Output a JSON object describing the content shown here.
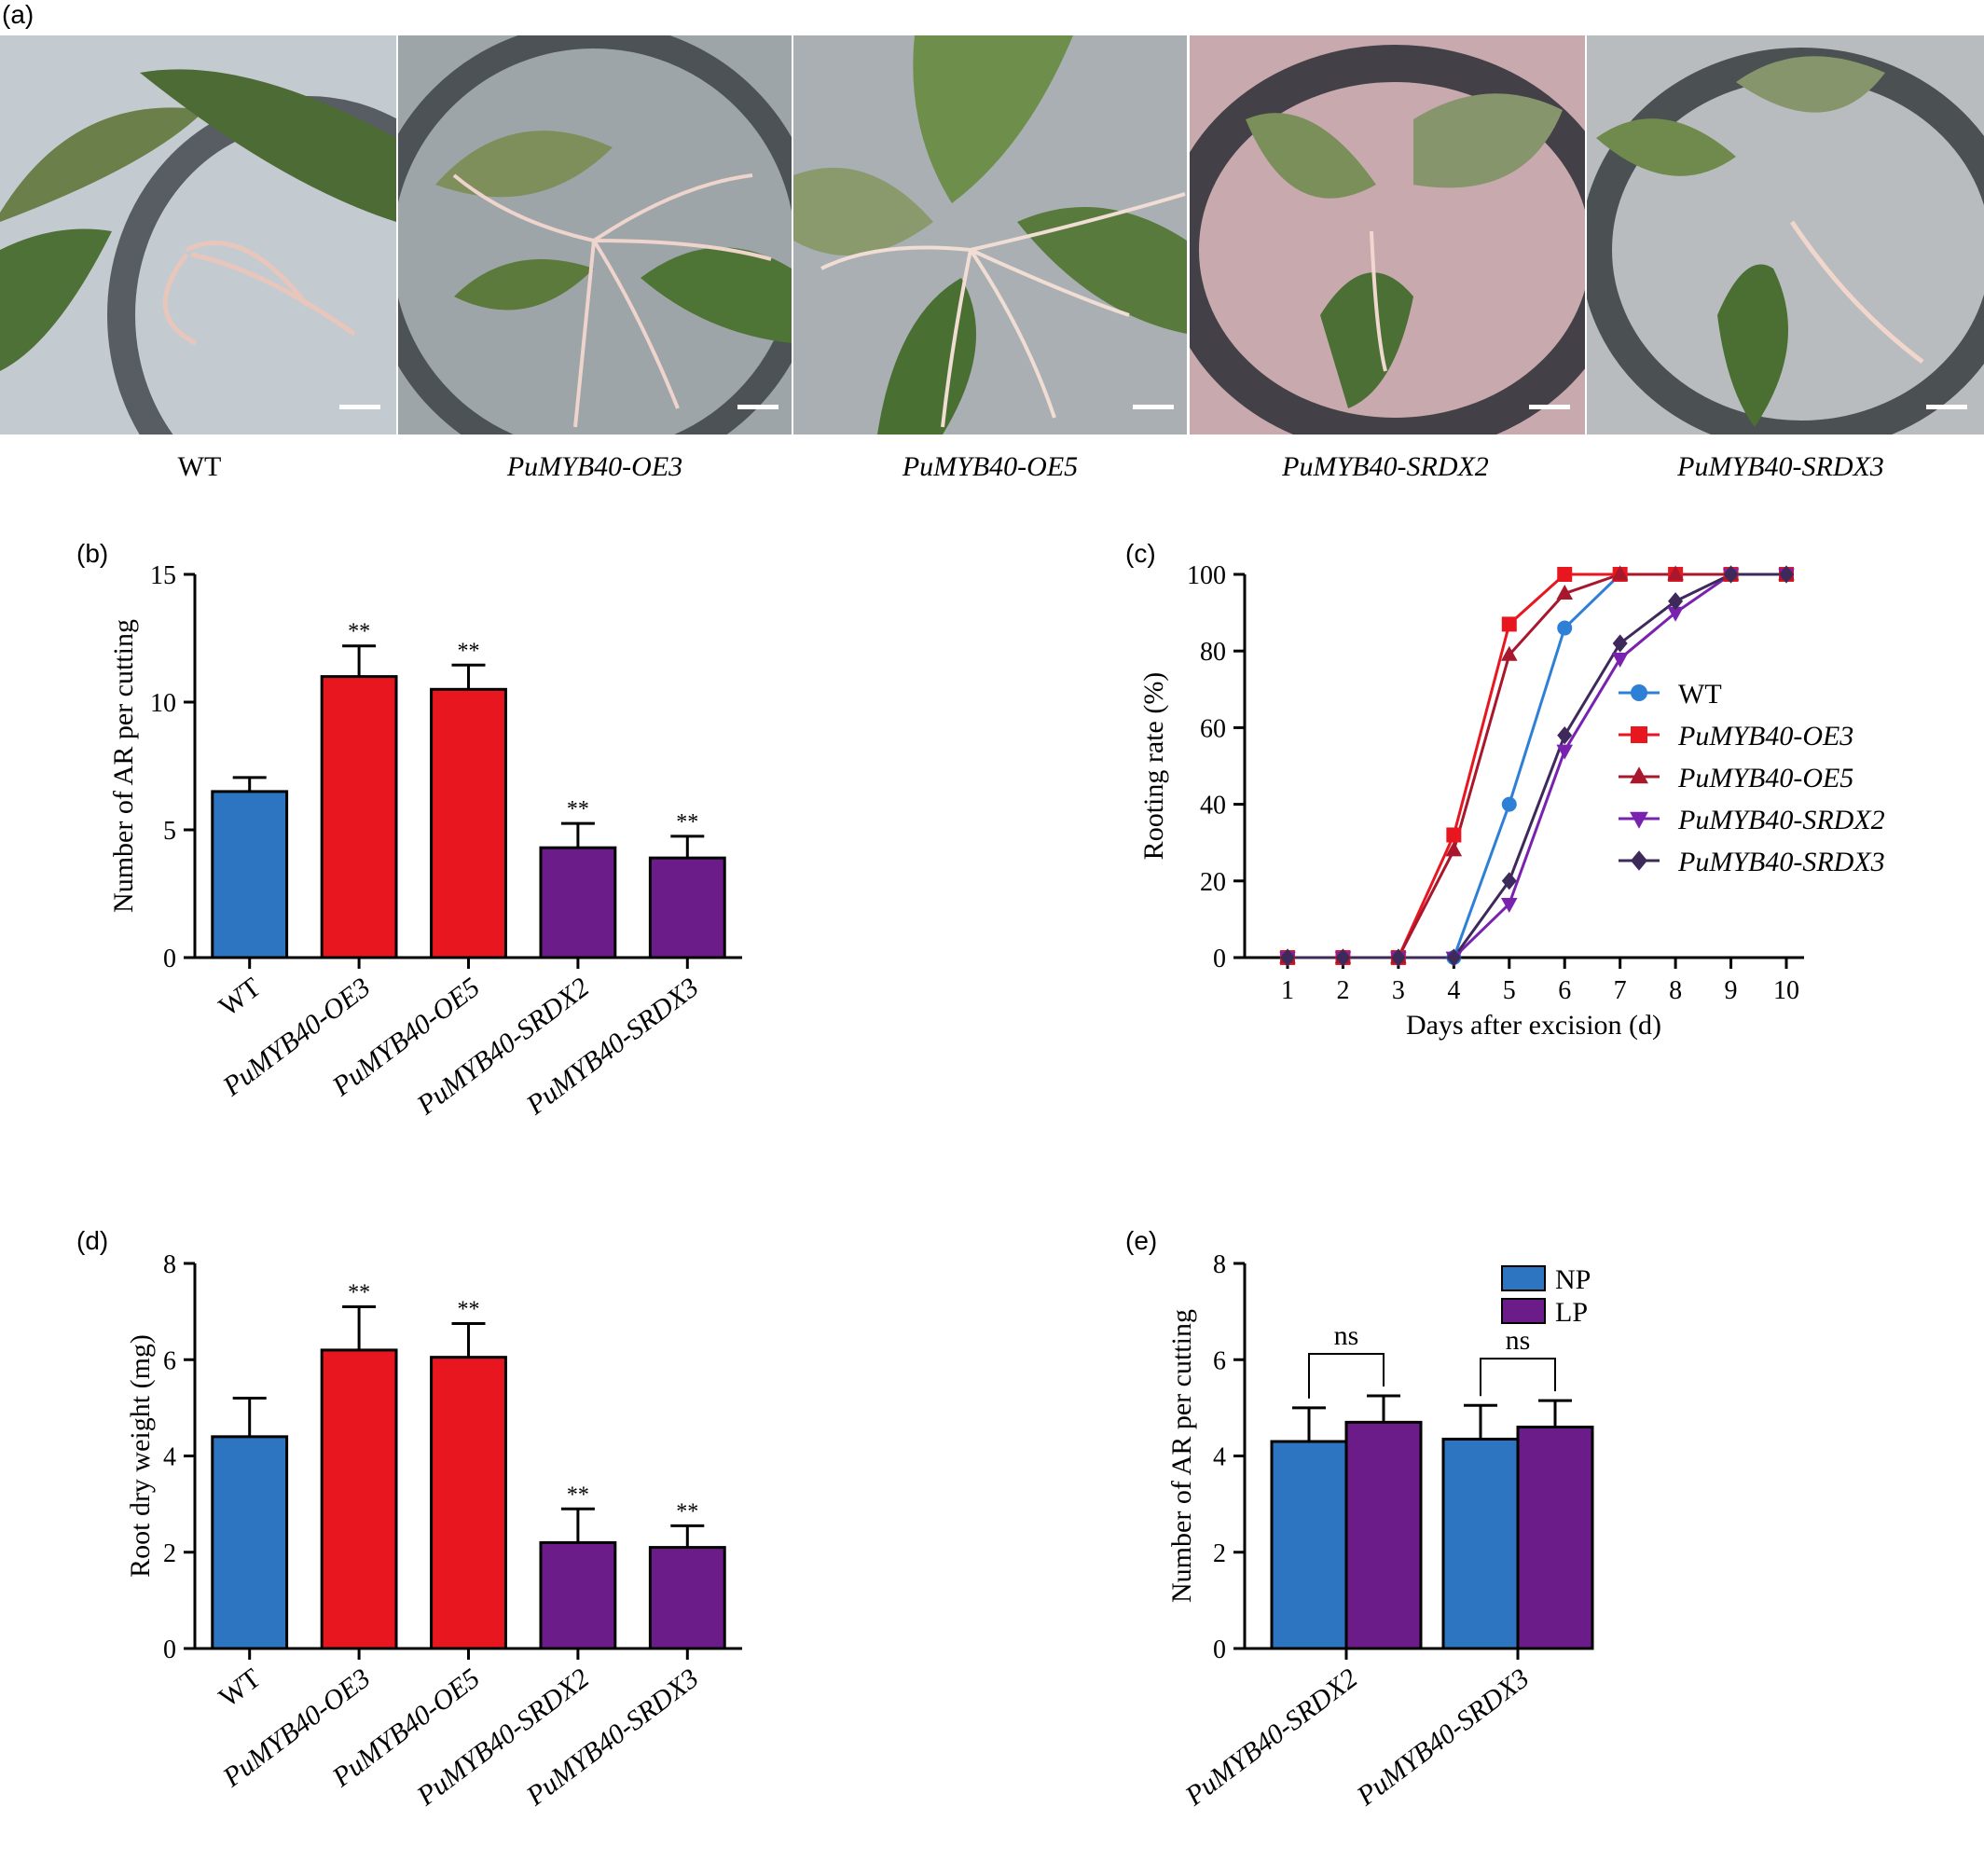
{
  "panel_letters": [
    "(a)",
    "(b)",
    "(c)",
    "(d)",
    "(e)"
  ],
  "photos": {
    "labels": [
      "WT",
      "PuMYB40-OE3",
      "PuMYB40-OE5",
      "PuMYB40-SRDX2",
      "PuMYB40-SRDX3"
    ],
    "italic": [
      false,
      true,
      true,
      true,
      true
    ]
  },
  "colors": {
    "wt": "#2e75c1",
    "oe": "#e8161f",
    "srdx": "#6c1c89",
    "np": "#2e75c1",
    "lp": "#6c1c89",
    "line_wt": "#2e7fd6",
    "line_oe3": "#e8161f",
    "line_oe5": "#a8172c",
    "line_srdx2": "#7a22b0",
    "line_srdx3": "#3d2a5a"
  },
  "chart_data": [
    {
      "id": "b",
      "type": "bar",
      "categories": [
        "WT",
        "PuMYB40-OE3",
        "PuMYB40-OE5",
        "PuMYB40-SRDX2",
        "PuMYB40-SRDX3"
      ],
      "values": [
        6.5,
        11.0,
        10.5,
        4.3,
        3.9
      ],
      "errors": [
        0.55,
        1.2,
        0.95,
        0.95,
        0.85
      ],
      "significance": [
        "",
        "**",
        "**",
        "**",
        "**"
      ],
      "bar_colors": [
        "#2e75c1",
        "#e8161f",
        "#e8161f",
        "#6c1c89",
        "#6c1c89"
      ],
      "ylabel": "Number of AR per cutting",
      "ylim": [
        0,
        15
      ],
      "yticks": [
        "0",
        "5",
        "10",
        "15"
      ]
    },
    {
      "id": "c",
      "type": "line",
      "x": [
        1,
        2,
        3,
        4,
        5,
        6,
        7,
        8,
        9,
        10
      ],
      "xticks": [
        "1",
        "2",
        "3",
        "4",
        "5",
        "6",
        "7",
        "8",
        "9",
        "10"
      ],
      "series": [
        {
          "name": "WT",
          "marker": "circle",
          "color": "#2e7fd6",
          "values": [
            0,
            0,
            0,
            0,
            40,
            86,
            100,
            100,
            100,
            100
          ]
        },
        {
          "name": "PuMYB40-OE3",
          "marker": "square",
          "color": "#e8161f",
          "values": [
            0,
            0,
            0,
            32,
            87,
            100,
            100,
            100,
            100,
            100
          ]
        },
        {
          "name": "PuMYB40-OE5",
          "marker": "triangle-up",
          "color": "#a8172c",
          "values": [
            0,
            0,
            0,
            28,
            79,
            95,
            100,
            100,
            100,
            100
          ]
        },
        {
          "name": "PuMYB40-SRDX2",
          "marker": "triangle-down",
          "color": "#7a22b0",
          "values": [
            0,
            0,
            0,
            0,
            14,
            54,
            78,
            90,
            100,
            100
          ]
        },
        {
          "name": "PuMYB40-SRDX3",
          "marker": "diamond",
          "color": "#3d2a5a",
          "values": [
            0,
            0,
            0,
            0,
            20,
            58,
            82,
            93,
            100,
            100
          ]
        }
      ],
      "xlabel": "Days after excision (d)",
      "ylabel": "Rooting rate (%)",
      "ylim": [
        0,
        100
      ],
      "yticks": [
        "0",
        "20",
        "40",
        "60",
        "80",
        "100"
      ],
      "legend": "right"
    },
    {
      "id": "d",
      "type": "bar",
      "categories": [
        "WT",
        "PuMYB40-OE3",
        "PuMYB40-OE5",
        "PuMYB40-SRDX2",
        "PuMYB40-SRDX3"
      ],
      "values": [
        4.4,
        6.2,
        6.05,
        2.2,
        2.1
      ],
      "errors": [
        0.8,
        0.9,
        0.7,
        0.7,
        0.45
      ],
      "significance": [
        "",
        "**",
        "**",
        "**",
        "**"
      ],
      "bar_colors": [
        "#2e75c1",
        "#e8161f",
        "#e8161f",
        "#6c1c89",
        "#6c1c89"
      ],
      "ylabel": "Root dry weight (mg)",
      "ylim": [
        0,
        8
      ],
      "yticks": [
        "0",
        "2",
        "4",
        "6",
        "8"
      ]
    },
    {
      "id": "e",
      "type": "bar",
      "categories": [
        "PuMYB40-SRDX2",
        "PuMYB40-SRDX3"
      ],
      "series": [
        {
          "name": "NP",
          "color": "#2e75c1",
          "values": [
            4.3,
            4.35
          ],
          "errors": [
            0.7,
            0.7
          ]
        },
        {
          "name": "LP",
          "color": "#6c1c89",
          "values": [
            4.7,
            4.6
          ],
          "errors": [
            0.55,
            0.55
          ]
        }
      ],
      "significance": [
        "ns",
        "ns"
      ],
      "ylabel": "Number of AR per cutting",
      "ylim": [
        0,
        8
      ],
      "yticks": [
        "0",
        "2",
        "4",
        "6",
        "8"
      ],
      "legend": "top"
    }
  ]
}
